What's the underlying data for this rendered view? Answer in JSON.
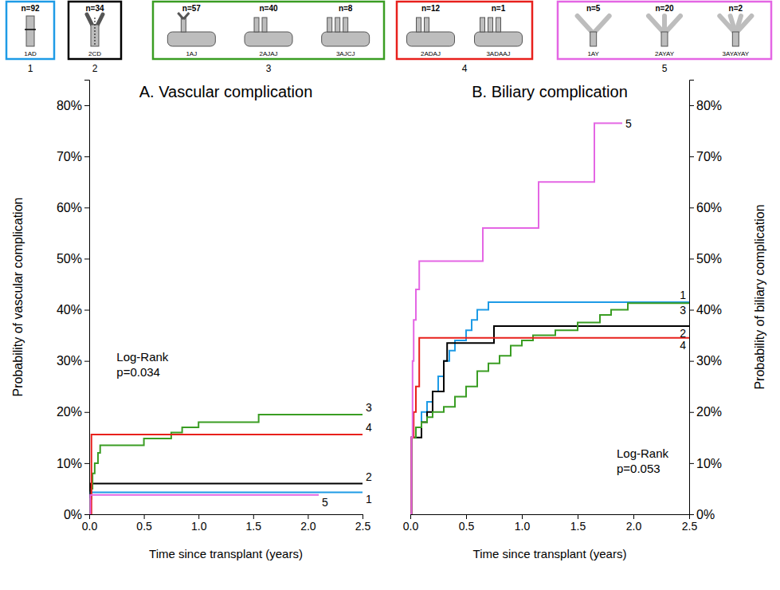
{
  "diagram": {
    "groups": [
      {
        "number": "1",
        "color": "#1e9be6",
        "items": [
          {
            "n": "n=92",
            "label": "1AD"
          }
        ]
      },
      {
        "number": "2",
        "color": "#000000",
        "items": [
          {
            "n": "n=34",
            "label": "2CD"
          }
        ]
      },
      {
        "number": "3",
        "color": "#3a9d23",
        "items": [
          {
            "n": "n=57",
            "label": "1AJ"
          },
          {
            "n": "n=40",
            "label": "2AJAJ"
          },
          {
            "n": "n=8",
            "label": "3AJCJ"
          }
        ]
      },
      {
        "number": "4",
        "color": "#e8201c",
        "items": [
          {
            "n": "n=12",
            "label": "2ADAJ"
          },
          {
            "n": "n=1",
            "label": "3ADAAJ"
          }
        ]
      },
      {
        "number": "5",
        "color": "#e466e4",
        "items": [
          {
            "n": "n=5",
            "label": "1AY"
          },
          {
            "n": "n=20",
            "label": "2AYAY"
          },
          {
            "n": "n=2",
            "label": "3AYAYAY"
          }
        ]
      }
    ]
  },
  "chart_data": [
    {
      "type": "line",
      "title": "A. Vascular complication",
      "line_style": "step",
      "x_label": "Time since transplant (years)",
      "y_label": "Probability of vascular complication",
      "xlim": [
        0,
        2.5
      ],
      "ylim": [
        0,
        85
      ],
      "xticks": [
        {
          "value": 0,
          "label": "0.0"
        },
        {
          "value": 0.5,
          "label": "0.5"
        },
        {
          "value": 1,
          "label": "1.0"
        },
        {
          "value": 1.5,
          "label": "1.5"
        },
        {
          "value": 2,
          "label": "2.0"
        },
        {
          "value": 2.5,
          "label": "2.5"
        }
      ],
      "yticks": [
        {
          "value": 0,
          "label": "0%"
        },
        {
          "value": 10,
          "label": "10%"
        },
        {
          "value": 20,
          "label": "20%"
        },
        {
          "value": 30,
          "label": "30%"
        },
        {
          "value": 40,
          "label": "40%"
        },
        {
          "value": 50,
          "label": "50%"
        },
        {
          "value": 60,
          "label": "60%"
        },
        {
          "value": 70,
          "label": "70%"
        },
        {
          "value": 80,
          "label": "80%"
        }
      ],
      "annotation": {
        "lines": [
          "Log-Rank",
          "p=0.034"
        ],
        "x": 0.25,
        "y": 30
      },
      "series": [
        {
          "name": "1",
          "color": "#1e9be6",
          "x": [
            0,
            0.01,
            2.5
          ],
          "values": [
            0,
            4.3,
            4.3
          ]
        },
        {
          "name": "2",
          "color": "#000000",
          "x": [
            0,
            0.01,
            2.5
          ],
          "values": [
            0,
            6.0,
            6.0
          ]
        },
        {
          "name": "3",
          "color": "#3a9d23",
          "x": [
            0,
            0.01,
            0.02,
            0.03,
            0.05,
            0.08,
            0.1,
            0.5,
            0.75,
            0.85,
            1.0,
            1.55,
            2.5
          ],
          "values": [
            0,
            3,
            5,
            8,
            10,
            12,
            13.5,
            14.8,
            16,
            17,
            18,
            19.5,
            19.5
          ]
        },
        {
          "name": "4",
          "color": "#e8201c",
          "x": [
            0,
            0.02,
            2.5
          ],
          "values": [
            0,
            15.6,
            15.6
          ]
        },
        {
          "name": "5",
          "color": "#e466e4",
          "x": [
            0,
            0.01,
            2.1
          ],
          "values": [
            0,
            3.8,
            3.8
          ]
        }
      ]
    },
    {
      "type": "line",
      "title": "B. Biliary complication",
      "line_style": "step",
      "x_label": "Time since transplant (years)",
      "y_label": "Probability of biliary complication",
      "xlim": [
        0,
        2.5
      ],
      "ylim": [
        0,
        85
      ],
      "xticks": [
        {
          "value": 0,
          "label": "0.0"
        },
        {
          "value": 0.5,
          "label": "0.5"
        },
        {
          "value": 1,
          "label": "1.0"
        },
        {
          "value": 1.5,
          "label": "1.5"
        },
        {
          "value": 2,
          "label": "2.0"
        },
        {
          "value": 2.5,
          "label": "2.5"
        }
      ],
      "yticks": [
        {
          "value": 0,
          "label": "0%"
        },
        {
          "value": 10,
          "label": "10%"
        },
        {
          "value": 20,
          "label": "20%"
        },
        {
          "value": 30,
          "label": "30%"
        },
        {
          "value": 40,
          "label": "40%"
        },
        {
          "value": 50,
          "label": "50%"
        },
        {
          "value": 60,
          "label": "60%"
        },
        {
          "value": 70,
          "label": "70%"
        },
        {
          "value": 80,
          "label": "80%"
        }
      ],
      "annotation": {
        "lines": [
          "Log-Rank",
          "p=0.053"
        ],
        "x": 1.85,
        "y": 11
      },
      "series": [
        {
          "name": "1",
          "color": "#1e9be6",
          "x": [
            0,
            0.01,
            0.05,
            0.1,
            0.15,
            0.2,
            0.25,
            0.3,
            0.35,
            0.4,
            0.5,
            0.55,
            0.6,
            0.7,
            2.5
          ],
          "values": [
            0,
            15,
            17,
            20,
            22,
            24,
            27,
            30,
            32,
            34,
            36,
            38,
            40,
            41.5,
            41.5
          ]
        },
        {
          "name": "2",
          "color": "#000000",
          "x": [
            0,
            0.01,
            0.1,
            0.15,
            0.2,
            0.3,
            0.33,
            0.75,
            2.5
          ],
          "values": [
            0,
            15,
            18,
            20,
            24,
            30,
            33.5,
            36.8,
            36.8
          ]
        },
        {
          "name": "3",
          "color": "#3a9d23",
          "x": [
            0,
            0.01,
            0.05,
            0.1,
            0.15,
            0.2,
            0.3,
            0.4,
            0.5,
            0.6,
            0.7,
            0.8,
            0.9,
            1.0,
            1.1,
            1.3,
            1.5,
            1.7,
            1.8,
            1.95,
            2.5
          ],
          "values": [
            0,
            15,
            17,
            18,
            19,
            20,
            21,
            23,
            25,
            28,
            29.5,
            31,
            33,
            34,
            35,
            36,
            37.5,
            39,
            40,
            41.3,
            41.3
          ]
        },
        {
          "name": "4",
          "color": "#e8201c",
          "x": [
            0,
            0.01,
            0.03,
            0.05,
            0.08,
            2.5
          ],
          "values": [
            0,
            15,
            20,
            25,
            34.5,
            34.5
          ]
        },
        {
          "name": "5",
          "color": "#e466e4",
          "x": [
            0,
            0.01,
            0.02,
            0.03,
            0.05,
            0.08,
            0.65,
            1.15,
            1.65,
            1.9
          ],
          "values": [
            0,
            15,
            30,
            38,
            44,
            49.5,
            56,
            65,
            76.5,
            76.5
          ]
        }
      ]
    }
  ]
}
